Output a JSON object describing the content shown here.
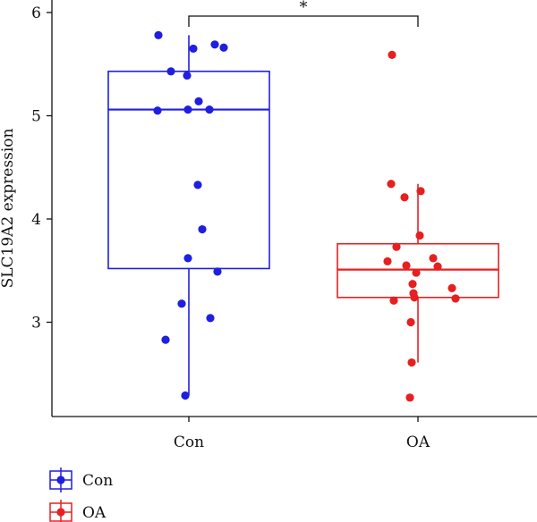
{
  "chart_data": {
    "type": "box",
    "ylabel": "SLC19A2 expression",
    "ylim": [
      2.1,
      6.07
    ],
    "yticks": [
      3,
      4,
      5,
      6
    ],
    "categories": [
      "Con",
      "OA"
    ],
    "significance": "*",
    "series": [
      {
        "name": "Con",
        "color": "#1f1fe0",
        "box": {
          "whisker_low": 2.29,
          "q1": 3.52,
          "median": 5.06,
          "q3": 5.43,
          "whisker_high": 5.78
        },
        "points": [
          [
            -0.34,
            5.78
          ],
          [
            -0.2,
            5.43
          ],
          [
            -0.35,
            5.05
          ],
          [
            -0.02,
            5.39
          ],
          [
            0.05,
            5.65
          ],
          [
            0.29,
            5.69
          ],
          [
            0.39,
            5.66
          ],
          [
            0.11,
            5.14
          ],
          [
            -0.01,
            5.06
          ],
          [
            0.23,
            5.06
          ],
          [
            0.1,
            4.33
          ],
          [
            0.15,
            3.9
          ],
          [
            -0.01,
            3.62
          ],
          [
            0.32,
            3.49
          ],
          [
            -0.08,
            3.18
          ],
          [
            0.24,
            3.04
          ],
          [
            -0.26,
            2.83
          ],
          [
            -0.04,
            2.29
          ]
        ]
      },
      {
        "name": "OA",
        "color": "#e62020",
        "box": {
          "whisker_low": 2.61,
          "q1": 3.24,
          "median": 3.51,
          "q3": 3.76,
          "whisker_high": 4.34
        },
        "points": [
          [
            -0.29,
            5.59
          ],
          [
            -0.3,
            4.34
          ],
          [
            -0.15,
            4.21
          ],
          [
            0.03,
            4.27
          ],
          [
            0.02,
            3.84
          ],
          [
            -0.24,
            3.73
          ],
          [
            -0.34,
            3.59
          ],
          [
            -0.13,
            3.55
          ],
          [
            -0.02,
            3.48
          ],
          [
            0.17,
            3.62
          ],
          [
            0.22,
            3.54
          ],
          [
            0.38,
            3.33
          ],
          [
            0.42,
            3.23
          ],
          [
            -0.27,
            3.21
          ],
          [
            -0.04,
            3.24
          ],
          [
            -0.05,
            3.28
          ],
          [
            -0.06,
            3.37
          ],
          [
            -0.08,
            3.0
          ],
          [
            -0.07,
            2.61
          ],
          [
            -0.09,
            2.27
          ]
        ]
      }
    ],
    "legend": {
      "position": "bottom-left",
      "items": [
        "Con",
        "OA"
      ]
    }
  }
}
